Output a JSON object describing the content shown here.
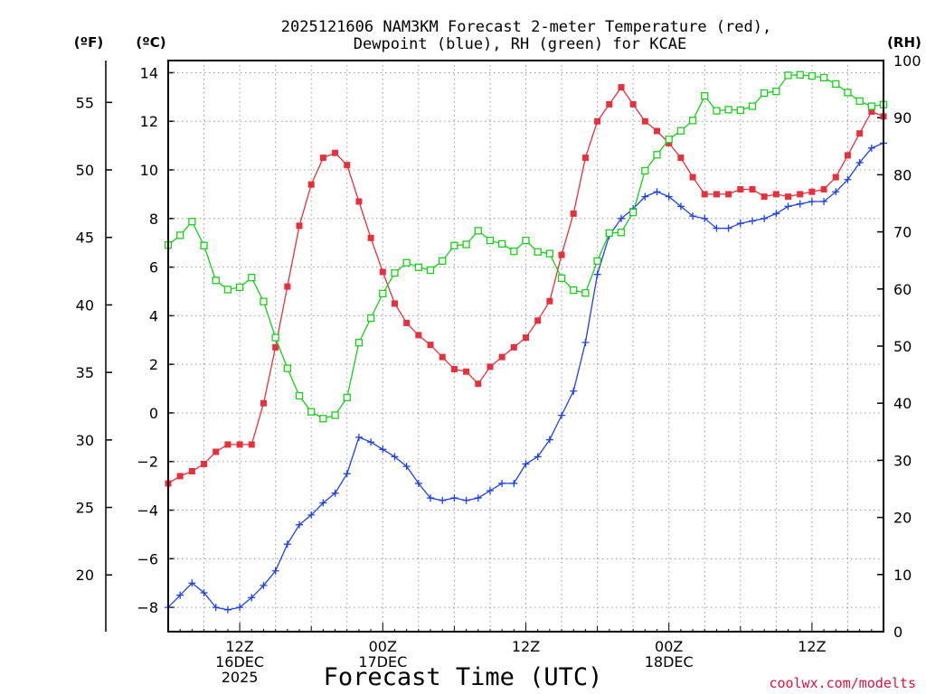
{
  "chart_data": {
    "type": "line",
    "title_line1": "2025121606 NAM3KM Forecast 2-meter Temperature (red),",
    "title_line2": "Dewpoint (blue), RH (green) for KCAE",
    "xlabel": "Forecast Time (UTC)",
    "credit": "coolwx.com/modelts",
    "credit_color": "#e0103c",
    "left_f_header": "(ºF)",
    "left_c_header": "(ºC)",
    "right_header": "(RH)",
    "ylim_c": [
      -9,
      14.5
    ],
    "ylim_rh": [
      0,
      100
    ],
    "x_range_hours": [
      6,
      66
    ],
    "grid": true,
    "c_ticks": [
      14,
      12,
      10,
      8,
      6,
      4,
      2,
      0,
      -2,
      -4,
      -6,
      -8
    ],
    "c_tick_labels": [
      "14",
      "12",
      "10",
      "8",
      "6",
      "4",
      "2",
      "0",
      "−2",
      "−4",
      "−6",
      "−8"
    ],
    "f_ticks": [
      55,
      50,
      45,
      40,
      35,
      30,
      25,
      20
    ],
    "f_tick_labels": [
      "55",
      "50",
      "45",
      "40",
      "35",
      "30",
      "25",
      "20"
    ],
    "rh_ticks": [
      100,
      90,
      80,
      70,
      60,
      50,
      40,
      30,
      20,
      10,
      0
    ],
    "rh_tick_labels": [
      "100",
      "90",
      "80",
      "70",
      "60",
      "50",
      "40",
      "30",
      "20",
      "10",
      "0"
    ],
    "x_ticks": [
      {
        "hour": 12,
        "lines": [
          "12Z",
          "16DEC",
          "2025"
        ]
      },
      {
        "hour": 24,
        "lines": [
          "00Z",
          "17DEC"
        ]
      },
      {
        "hour": 36,
        "lines": [
          "12Z"
        ]
      },
      {
        "hour": 48,
        "lines": [
          "00Z",
          "18DEC"
        ]
      },
      {
        "hour": 60,
        "lines": [
          "12Z"
        ]
      }
    ],
    "hours": [
      6,
      7,
      8,
      9,
      10,
      11,
      12,
      13,
      14,
      15,
      16,
      17,
      18,
      19,
      20,
      21,
      22,
      23,
      24,
      25,
      26,
      27,
      28,
      29,
      30,
      31,
      32,
      33,
      34,
      35,
      36,
      37,
      38,
      39,
      40,
      41,
      42,
      43,
      44,
      45,
      46,
      47,
      48,
      49,
      50,
      51,
      52,
      53,
      54,
      55,
      56,
      57,
      58,
      59,
      60,
      61,
      62,
      63,
      64,
      65,
      66
    ],
    "series": [
      {
        "name": "2-meter Temperature",
        "unit": "C",
        "color": "#e8303c",
        "marker": "filled-square",
        "values": [
          -2.9,
          -2.6,
          -2.4,
          -2.1,
          -1.6,
          -1.3,
          -1.3,
          -1.3,
          0.4,
          2.7,
          5.2,
          7.7,
          9.4,
          10.5,
          10.7,
          10.2,
          8.7,
          7.2,
          5.8,
          4.5,
          3.7,
          3.2,
          2.8,
          2.3,
          1.8,
          1.7,
          1.2,
          1.9,
          2.3,
          2.7,
          3.1,
          3.8,
          4.6,
          6.5,
          8.2,
          10.5,
          12.0,
          12.7,
          13.4,
          12.7,
          12.0,
          11.6,
          11.1,
          10.5,
          9.7,
          9.0,
          9.0,
          9.0,
          9.2,
          9.2,
          8.9,
          9.0,
          8.9,
          9.0,
          9.1,
          9.2,
          9.7,
          10.6,
          11.5,
          12.4,
          12.2
        ]
      },
      {
        "name": "Dewpoint",
        "unit": "C",
        "color": "#2040e8",
        "marker": "plus",
        "values": [
          -8.0,
          -7.5,
          -7.0,
          -7.4,
          -8.0,
          -8.1,
          -8.0,
          -7.6,
          -7.1,
          -6.5,
          -5.4,
          -4.6,
          -4.2,
          -3.7,
          -3.3,
          -2.5,
          -1.0,
          -1.2,
          -1.5,
          -1.8,
          -2.2,
          -2.9,
          -3.5,
          -3.6,
          -3.5,
          -3.6,
          -3.5,
          -3.2,
          -2.9,
          -2.9,
          -2.1,
          -1.8,
          -1.1,
          -0.1,
          0.9,
          2.9,
          5.7,
          7.3,
          8.0,
          8.4,
          8.9,
          9.1,
          8.9,
          8.5,
          8.1,
          8.0,
          7.6,
          7.6,
          7.8,
          7.9,
          8.0,
          8.2,
          8.5,
          8.6,
          8.7,
          8.7,
          9.1,
          9.6,
          10.3,
          10.9,
          11.1
        ]
      },
      {
        "name": "RH",
        "unit": "%",
        "color": "#18d018",
        "marker": "open-square",
        "values": [
          67.7,
          69.4,
          71.8,
          67.6,
          61.5,
          59.9,
          60.3,
          62.0,
          57.8,
          51.5,
          46.1,
          41.3,
          38.5,
          37.3,
          37.9,
          41.0,
          50.6,
          54.9,
          59.2,
          62.8,
          64.6,
          63.8,
          63.3,
          64.9,
          67.6,
          67.8,
          70.2,
          68.5,
          67.9,
          66.6,
          68.5,
          66.5,
          66.2,
          61.9,
          59.8,
          59.3,
          64.9,
          69.8,
          69.9,
          73.4,
          80.7,
          83.5,
          86.2,
          87.7,
          89.5,
          93.8,
          91.2,
          91.4,
          91.3,
          92.0,
          94.3,
          94.6,
          97.4,
          97.5,
          97.3,
          97.0,
          95.9,
          94.4,
          92.9,
          92.0,
          92.3
        ]
      }
    ]
  }
}
